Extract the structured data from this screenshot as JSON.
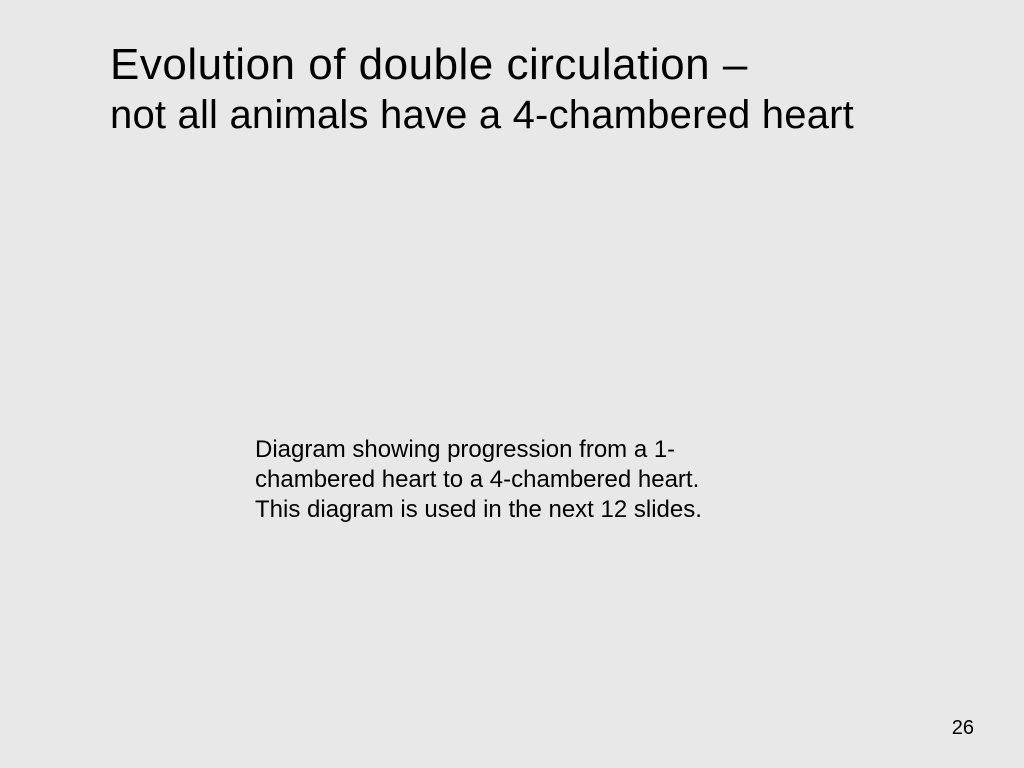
{
  "slide": {
    "title_line1": "Evolution of double circulation –",
    "title_line2": "not all animals have a 4-chambered heart",
    "body_text": "Diagram showing progression from a 1-chambered heart to a 4-chambered heart. This diagram is used in the next 12 slides.",
    "page_number": "26"
  },
  "style": {
    "background_color": "#e8e8e8",
    "text_color": "#000000",
    "title_fontsize_line1": 44,
    "title_fontsize_line2": 40,
    "body_fontsize": 24,
    "page_number_fontsize": 20,
    "font_family": "Arial, Helvetica, sans-serif"
  }
}
